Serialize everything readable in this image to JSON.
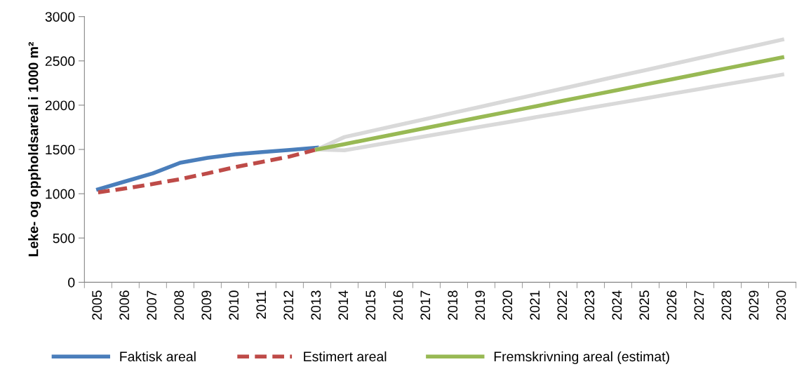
{
  "chart_data": {
    "type": "line",
    "ylabel": "Leke- og oppholdsareal i 1000 m²",
    "categories": [
      "2005",
      "2006",
      "2007",
      "2008",
      "2009",
      "2010",
      "2011",
      "2012",
      "2013",
      "2014",
      "2015",
      "2016",
      "2017",
      "2018",
      "2019",
      "2020",
      "2021",
      "2022",
      "2023",
      "2024",
      "2025",
      "2026",
      "2027",
      "2028",
      "2029",
      "2030"
    ],
    "series": [
      {
        "name": "Faktisk areal",
        "color": "#4a7ebb",
        "line_style": "solid",
        "values": [
          1050,
          1140,
          1230,
          1350,
          1405,
          1445,
          1470,
          1495,
          1520,
          null,
          null,
          null,
          null,
          null,
          null,
          null,
          null,
          null,
          null,
          null,
          null,
          null,
          null,
          null,
          null,
          null
        ]
      },
      {
        "name": "Estimert areal",
        "color": "#be4b48",
        "line_style": "dashed",
        "values": [
          1015,
          1060,
          1110,
          1165,
          1230,
          1300,
          1360,
          1420,
          1500,
          null,
          null,
          null,
          null,
          null,
          null,
          null,
          null,
          null,
          null,
          null,
          null,
          null,
          null,
          null,
          null,
          null
        ]
      },
      {
        "color": "#d9d9d9",
        "line_style": "solid",
        "values": [
          null,
          null,
          null,
          null,
          null,
          null,
          null,
          null,
          1500,
          1640,
          1709,
          1778,
          1846,
          1915,
          1984,
          2053,
          2121,
          2190,
          2259,
          2328,
          2396,
          2465,
          2534,
          2603,
          2671,
          2740
        ]
      },
      {
        "color": "#d9d9d9",
        "line_style": "solid",
        "values": [
          null,
          null,
          null,
          null,
          null,
          null,
          null,
          null,
          1500,
          1490,
          1543,
          1597,
          1650,
          1704,
          1757,
          1810,
          1864,
          1917,
          1971,
          2024,
          2077,
          2131,
          2184,
          2238,
          2291,
          2345
        ]
      },
      {
        "name": "Fremskrivning areal (estimat)",
        "color": "#98b954",
        "line_style": "solid",
        "values": [
          null,
          null,
          null,
          null,
          null,
          null,
          null,
          null,
          1500,
          1560,
          1621,
          1682,
          1744,
          1805,
          1866,
          1927,
          1988,
          2050,
          2111,
          2172,
          2234,
          2295,
          2356,
          2418,
          2479,
          2540
        ]
      }
    ],
    "ylim": [
      0,
      3000
    ],
    "yticks": [
      0,
      500,
      1000,
      1500,
      2000,
      2500,
      3000
    ],
    "grid": false,
    "legend": "bottom"
  }
}
